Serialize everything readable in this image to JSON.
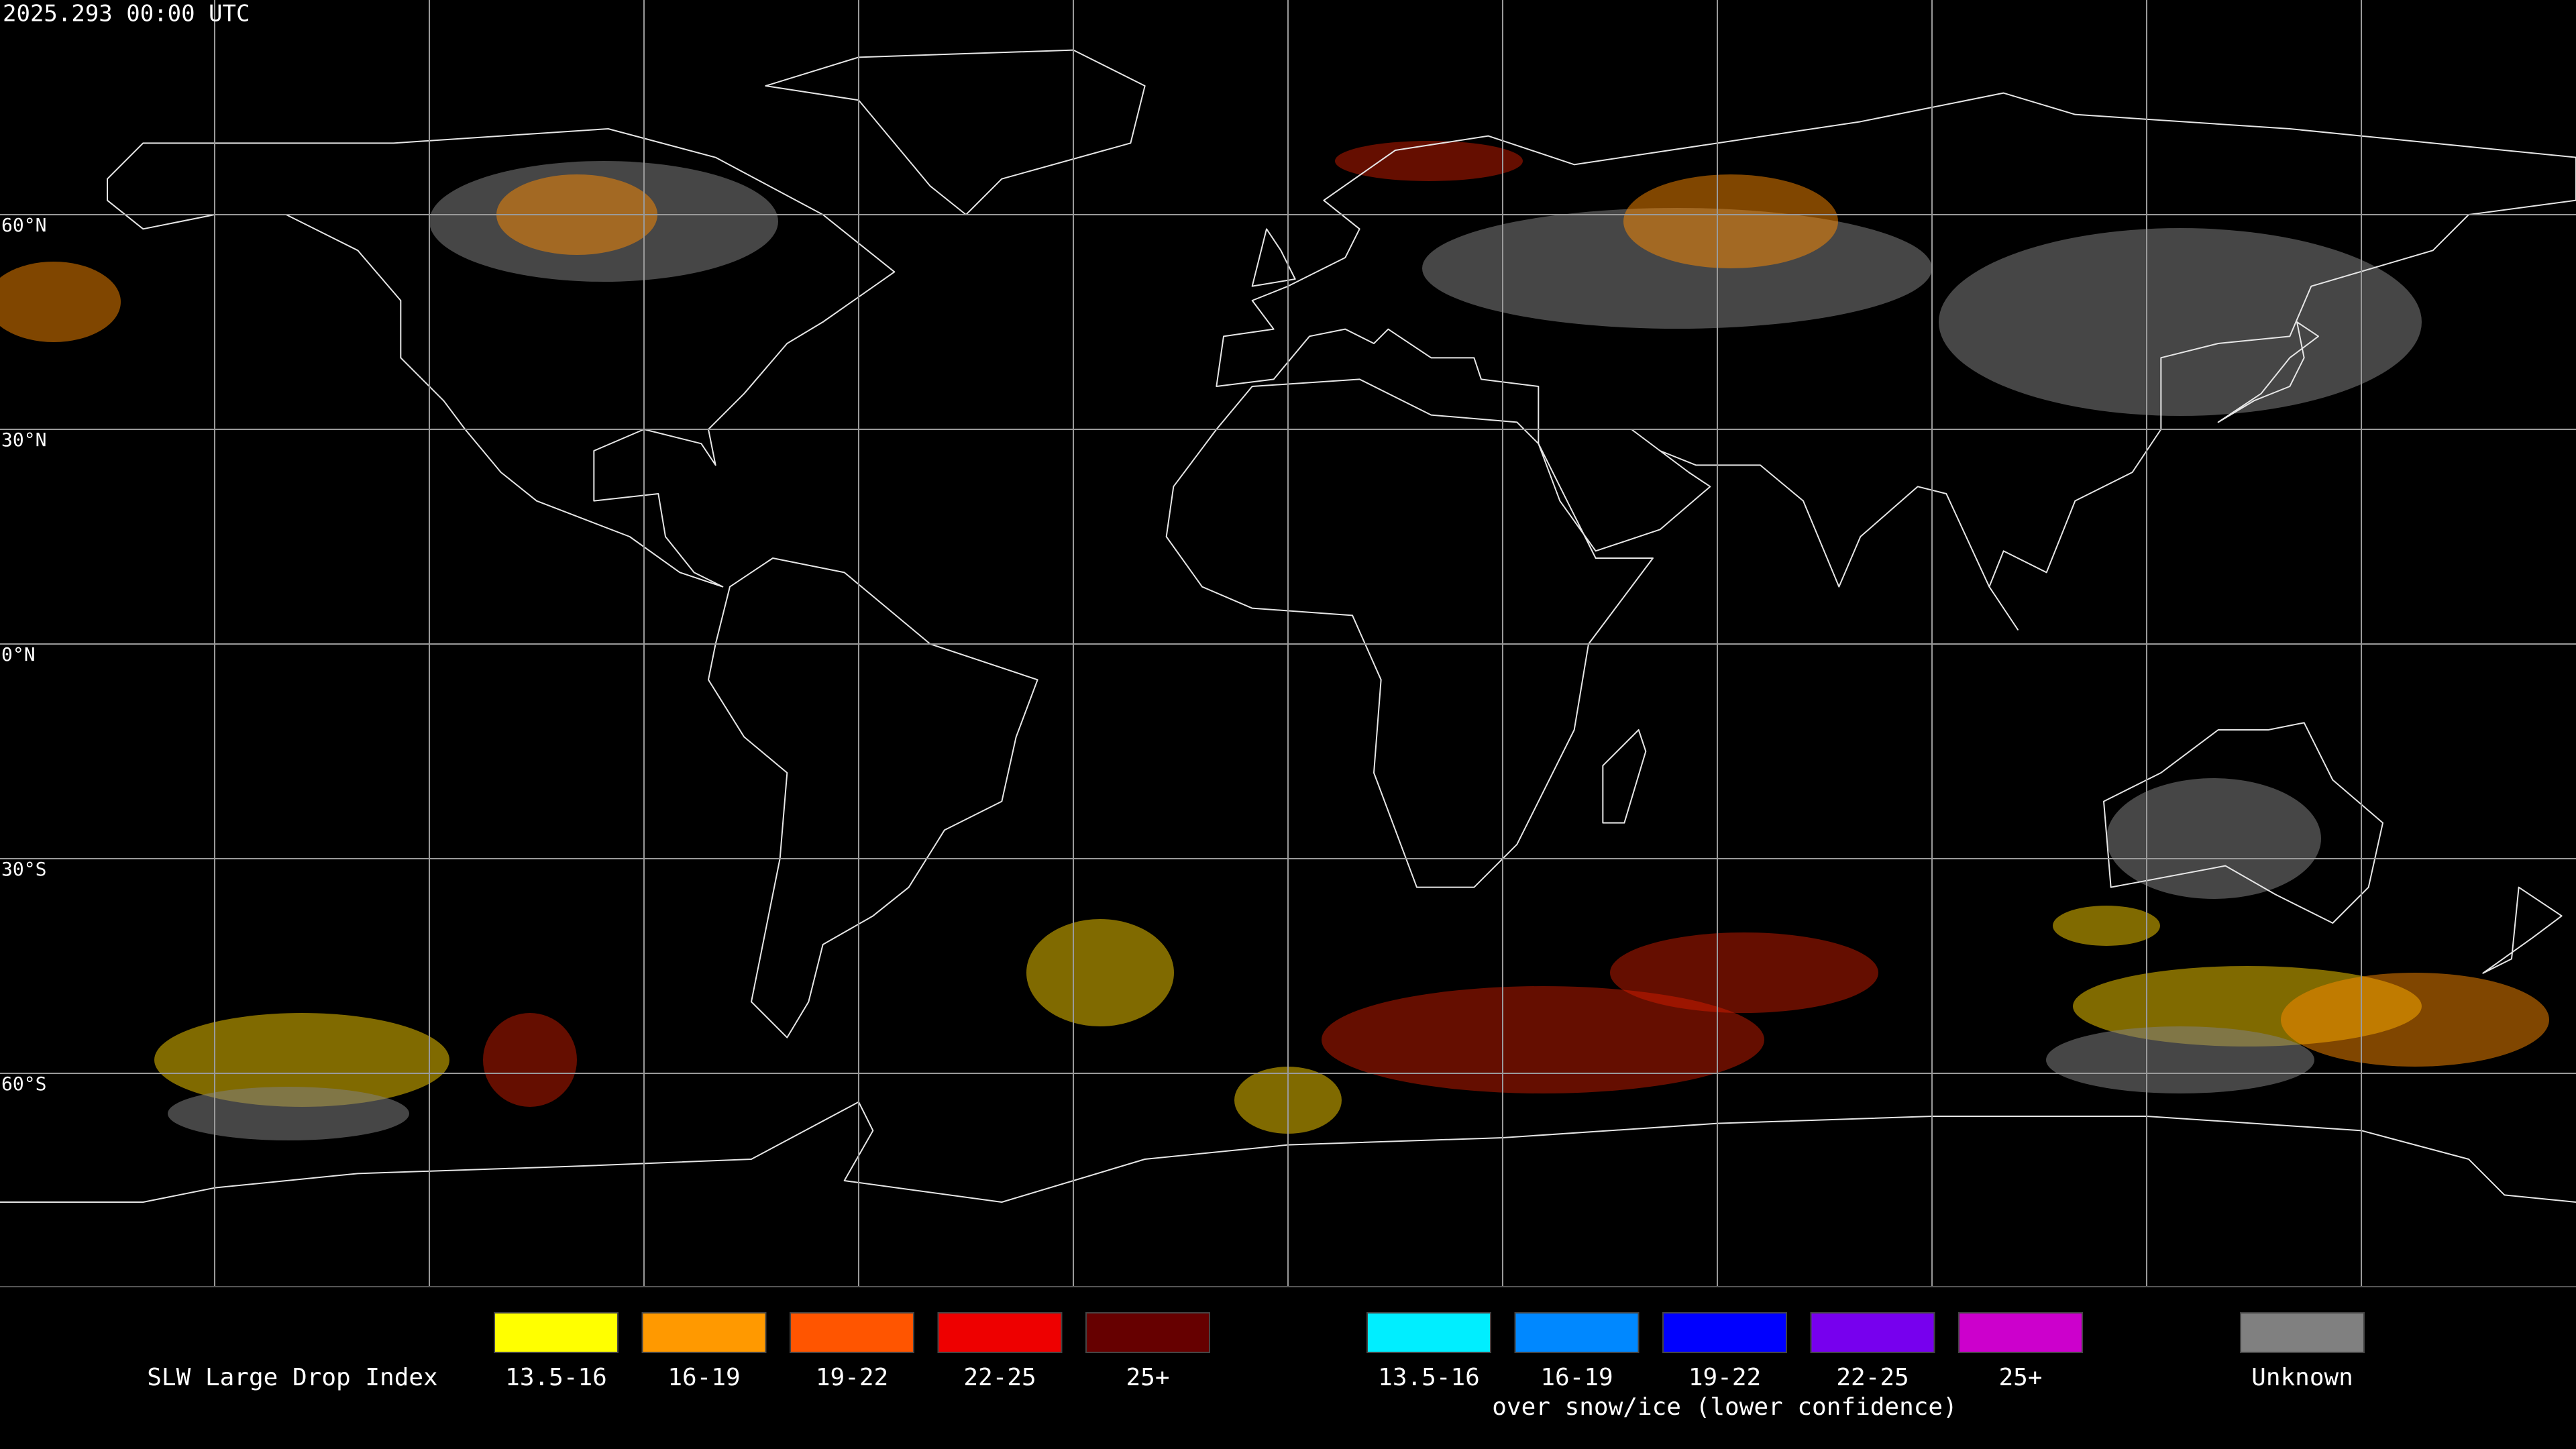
{
  "header": {
    "title": "2025.293 00:00 UTC"
  },
  "map": {
    "lat_labels": [
      "60°N",
      "30°N",
      "0°N",
      "30°S",
      "60°S"
    ]
  },
  "legend": {
    "title": "SLW Large Drop Index",
    "items": [
      {
        "label": "13.5-16",
        "color": "#ffff00"
      },
      {
        "label": "16-19",
        "color": "#ff9900"
      },
      {
        "label": "19-22",
        "color": "#ff5500"
      },
      {
        "label": "22-25",
        "color": "#ee0000"
      },
      {
        "label": "25+",
        "color": "#660000"
      }
    ],
    "snow_items": [
      {
        "label": "13.5-16",
        "color": "#00eeff"
      },
      {
        "label": "16-19",
        "color": "#0088ff"
      },
      {
        "label": "19-22",
        "color": "#0000ff"
      },
      {
        "label": "22-25",
        "color": "#7700ee"
      },
      {
        "label": "25+",
        "color": "#cc00cc"
      }
    ],
    "snow_note": "over snow/ice (lower confidence)",
    "unknown": {
      "label": "Unknown",
      "color": "#808080"
    }
  }
}
